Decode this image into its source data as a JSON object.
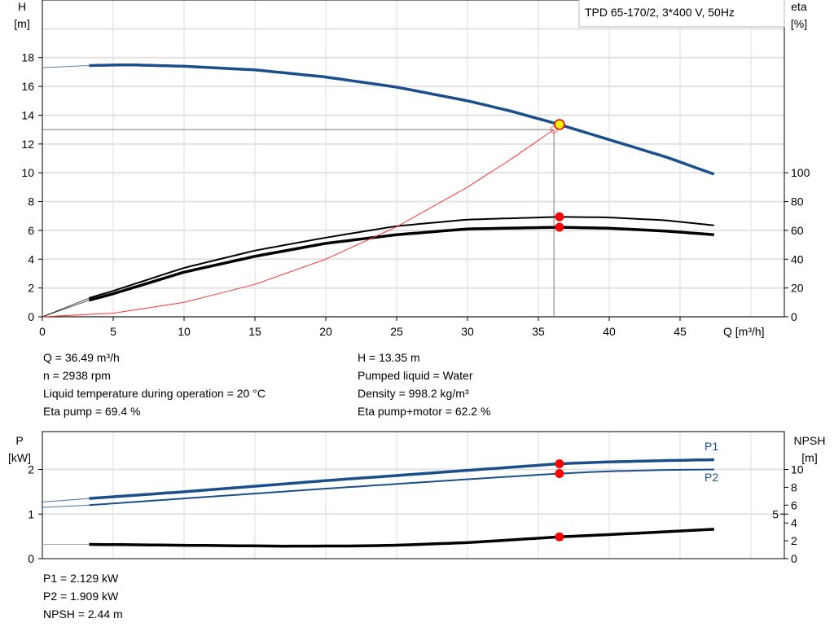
{
  "chart_data": [
    {
      "type": "line",
      "title": "TPD 65-170/2, 3*400 V, 50Hz",
      "xlabel": "Q [m³/h]",
      "ylabel_left": [
        "H",
        "[m]"
      ],
      "ylabel_right": [
        "eta",
        "[%]"
      ],
      "xlim": [
        0,
        52.5
      ],
      "ylim_left": [
        0,
        22
      ],
      "ylim_right": [
        0,
        220
      ],
      "x_ticks": [
        0,
        5,
        10,
        15,
        20,
        25,
        30,
        35,
        40,
        45
      ],
      "y_ticks_left": [
        0,
        2,
        4,
        6,
        8,
        10,
        12,
        14,
        16,
        18
      ],
      "y_ticks_right": [
        0,
        20,
        40,
        60,
        80,
        100
      ],
      "grid": true,
      "series": [
        {
          "axis": "left",
          "color": "#1a4f8a",
          "width": 3.5,
          "x": [
            0,
            3.3,
            6,
            10,
            15,
            20,
            25,
            30,
            33,
            36.49,
            40,
            44,
            47.4
          ],
          "y": [
            17.3,
            17.45,
            17.5,
            17.4,
            17.15,
            16.65,
            15.95,
            15.0,
            14.3,
            13.35,
            12.3,
            11.1,
            9.9
          ],
          "extrapolated_to": 3.3
        },
        {
          "axis": "right",
          "color": "#000000",
          "width": 2,
          "x": [
            0,
            3.3,
            5,
            10,
            15,
            20,
            25,
            30,
            36.49,
            40,
            44,
            47.4
          ],
          "y": [
            0,
            13,
            18,
            34,
            46,
            55,
            63,
            67.5,
            69.4,
            69,
            67,
            63.5
          ],
          "extrapolated_to": 3.3
        },
        {
          "axis": "right",
          "color": "#000000",
          "width": 3.5,
          "x": [
            0,
            3.3,
            5,
            10,
            15,
            20,
            25,
            30,
            36.49,
            40,
            44,
            47.4
          ],
          "y": [
            0,
            11.5,
            16,
            31,
            42,
            51,
            57,
            61,
            62.2,
            61.5,
            59.5,
            57
          ],
          "extrapolated_to": 3.3
        },
        {
          "axis": "left",
          "color": "#ff3030",
          "width": 1,
          "x": [
            0,
            5,
            10,
            15,
            20,
            25,
            30,
            33,
            36.1
          ],
          "y": [
            0,
            0.25,
            1,
            2.25,
            4,
            6.25,
            9,
            10.9,
            13.0
          ],
          "extrapolated_to": 0
        }
      ],
      "operating_point": {
        "Q": 36.49,
        "H": 13.35,
        "eta_pump": 69.4,
        "eta_total": 62.2
      },
      "system_point": {
        "Q": 36.1,
        "H": 13.0
      }
    },
    {
      "type": "line",
      "xlim": [
        0,
        52.5
      ],
      "ylabel_left": [
        "P",
        "[kW]"
      ],
      "ylabel_right": [
        "NPSH",
        "[m]"
      ],
      "ylim_left": [
        0,
        2.85
      ],
      "ylim_right": [
        0,
        14.25
      ],
      "y_ticks_left": [
        0,
        1,
        2
      ],
      "y_ticks_right": [
        0,
        2,
        4,
        5,
        6,
        8,
        10
      ],
      "grid": true,
      "series": [
        {
          "name": "P1",
          "axis": "left",
          "color": "#1a4f8a",
          "width": 3.5,
          "x": [
            0,
            3.3,
            10,
            20,
            30,
            36.49,
            40,
            44,
            47.4
          ],
          "y": [
            1.27,
            1.35,
            1.5,
            1.75,
            1.98,
            2.129,
            2.17,
            2.2,
            2.22
          ],
          "extrapolated_to": 3.3
        },
        {
          "name": "P2",
          "axis": "left",
          "color": "#1a4f8a",
          "width": 2,
          "x": [
            0,
            3.3,
            10,
            20,
            30,
            36.49,
            40,
            44,
            47.4
          ],
          "y": [
            1.15,
            1.2,
            1.35,
            1.57,
            1.78,
            1.909,
            1.96,
            1.99,
            2.0
          ],
          "extrapolated_to": 3.3
        },
        {
          "axis": "right",
          "color": "#000000",
          "width": 3.5,
          "x": [
            0,
            3.3,
            10,
            17,
            22,
            25,
            30,
            36.49,
            42,
            47.4
          ],
          "y": [
            1.6,
            1.6,
            1.5,
            1.4,
            1.42,
            1.5,
            1.8,
            2.44,
            2.85,
            3.3
          ],
          "extrapolated_to": 3.3
        }
      ],
      "operating_point": {
        "Q": 36.49,
        "P1": 2.129,
        "P2": 1.909,
        "NPSH": 2.44
      }
    }
  ],
  "info_top": {
    "left": [
      "Q = 36.49 m³/h",
      "n = 2938 rpm",
      "Liquid temperature during operation = 20 °C",
      "Eta pump = 69.4 %"
    ],
    "right": [
      "H = 13.35 m",
      "Pumped liquid = Water",
      "Density = 998.2 kg/m³",
      "Eta pump+motor = 62.2 %"
    ]
  },
  "info_bottom": [
    "P1 = 2.129 kW",
    "P2 = 1.909 kW",
    "NPSH = 2.44 m"
  ],
  "colors": {
    "curve_blue": "#1a4f8a",
    "marker_red": "#ff0000",
    "op_point": "#ffee00",
    "grid": "#dcdcdc"
  }
}
